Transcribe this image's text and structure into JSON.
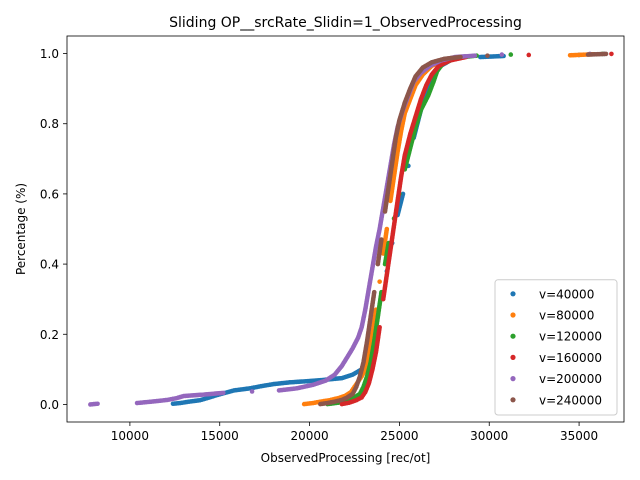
{
  "chart_data": {
    "type": "scatter",
    "title": "Sliding OP__srcRate_Slidin=1_ObservedProcessing",
    "xlabel": "ObservedProcessing [rec/ot]",
    "ylabel": "Percentage (%)",
    "xlim": [
      6500,
      37500
    ],
    "ylim": [
      -0.05,
      1.05
    ],
    "xticks": [
      10000,
      15000,
      20000,
      25000,
      30000,
      35000
    ],
    "yticks": [
      0.0,
      0.2,
      0.4,
      0.6,
      0.8,
      1.0
    ],
    "xtick_labels": [
      "10000",
      "15000",
      "20000",
      "25000",
      "30000",
      "35000"
    ],
    "ytick_labels": [
      "0.0",
      "0.2",
      "0.4",
      "0.6",
      "0.8",
      "1.0"
    ],
    "grid": false,
    "legend_position": "lower-right",
    "series": [
      {
        "name": "v=40000",
        "color": "#1f77b4",
        "points": [
          [
            12400,
            0.002
          ],
          [
            12800,
            0.004
          ],
          [
            13300,
            0.008
          ],
          [
            13900,
            0.012
          ],
          [
            14300,
            0.018
          ],
          [
            14800,
            0.026
          ],
          [
            15300,
            0.033
          ],
          [
            15800,
            0.04
          ],
          [
            16700,
            0.046
          ],
          [
            17300,
            0.052
          ],
          [
            18000,
            0.058
          ],
          [
            18900,
            0.063
          ],
          [
            19800,
            0.066
          ],
          [
            20800,
            0.07
          ],
          [
            21800,
            0.075
          ],
          [
            22400,
            0.085
          ],
          [
            22900,
            0.1
          ],
          [
            23400,
            0.13
          ],
          [
            23700,
            0.2
          ],
          [
            24000,
            0.3
          ],
          [
            24300,
            0.38
          ],
          [
            24600,
            0.46
          ],
          [
            24900,
            0.54
          ],
          [
            25200,
            0.6
          ],
          [
            25500,
            0.68
          ],
          [
            25800,
            0.76
          ],
          [
            26100,
            0.82
          ],
          [
            26400,
            0.88
          ],
          [
            26800,
            0.93
          ],
          [
            27300,
            0.965
          ],
          [
            28000,
            0.985
          ],
          [
            29500,
            0.99
          ],
          [
            30800,
            0.993
          ],
          [
            35000,
            0.996
          ],
          [
            36400,
            0.999
          ]
        ]
      },
      {
        "name": "v=80000",
        "color": "#ff7f0e",
        "points": [
          [
            19700,
            0.001
          ],
          [
            20200,
            0.004
          ],
          [
            20600,
            0.008
          ],
          [
            21100,
            0.012
          ],
          [
            21600,
            0.018
          ],
          [
            22000,
            0.025
          ],
          [
            22300,
            0.035
          ],
          [
            22500,
            0.05
          ],
          [
            22700,
            0.065
          ],
          [
            22900,
            0.08
          ],
          [
            23100,
            0.1
          ],
          [
            23300,
            0.15
          ],
          [
            23500,
            0.2
          ],
          [
            23700,
            0.27
          ],
          [
            23900,
            0.35
          ],
          [
            24100,
            0.43
          ],
          [
            24300,
            0.5
          ],
          [
            24500,
            0.58
          ],
          [
            24700,
            0.65
          ],
          [
            24900,
            0.72
          ],
          [
            25100,
            0.78
          ],
          [
            25300,
            0.83
          ],
          [
            25600,
            0.87
          ],
          [
            25900,
            0.91
          ],
          [
            26300,
            0.94
          ],
          [
            26800,
            0.965
          ],
          [
            27500,
            0.98
          ],
          [
            28500,
            0.99
          ],
          [
            34500,
            0.995
          ],
          [
            35800,
            0.998
          ]
        ]
      },
      {
        "name": "v=120000",
        "color": "#2ca02c",
        "points": [
          [
            21000,
            0.001
          ],
          [
            21600,
            0.005
          ],
          [
            22100,
            0.012
          ],
          [
            22500,
            0.02
          ],
          [
            22800,
            0.03
          ],
          [
            23000,
            0.05
          ],
          [
            23200,
            0.08
          ],
          [
            23400,
            0.12
          ],
          [
            23600,
            0.18
          ],
          [
            23800,
            0.25
          ],
          [
            24000,
            0.32
          ],
          [
            24200,
            0.4
          ],
          [
            24400,
            0.46
          ],
          [
            24700,
            0.53
          ],
          [
            25000,
            0.6
          ],
          [
            25300,
            0.67
          ],
          [
            25600,
            0.73
          ],
          [
            25900,
            0.79
          ],
          [
            26200,
            0.84
          ],
          [
            26600,
            0.88
          ],
          [
            26900,
            0.92
          ],
          [
            27100,
            0.95
          ],
          [
            27400,
            0.97
          ],
          [
            27900,
            0.982
          ],
          [
            28600,
            0.99
          ],
          [
            29300,
            0.994
          ],
          [
            31200,
            0.997
          ],
          [
            36300,
            0.999
          ]
        ]
      },
      {
        "name": "v=160000",
        "color": "#d62728",
        "points": [
          [
            21800,
            0.001
          ],
          [
            22200,
            0.005
          ],
          [
            22600,
            0.012
          ],
          [
            22900,
            0.02
          ],
          [
            23100,
            0.035
          ],
          [
            23300,
            0.06
          ],
          [
            23500,
            0.1
          ],
          [
            23700,
            0.15
          ],
          [
            23900,
            0.22
          ],
          [
            24100,
            0.3
          ],
          [
            24300,
            0.37
          ],
          [
            24500,
            0.44
          ],
          [
            24700,
            0.51
          ],
          [
            24900,
            0.58
          ],
          [
            25100,
            0.65
          ],
          [
            25300,
            0.71
          ],
          [
            25600,
            0.77
          ],
          [
            25900,
            0.82
          ],
          [
            26200,
            0.87
          ],
          [
            26500,
            0.91
          ],
          [
            26800,
            0.94
          ],
          [
            27200,
            0.965
          ],
          [
            27800,
            0.98
          ],
          [
            28700,
            0.99
          ],
          [
            32200,
            0.996
          ],
          [
            36800,
            0.999
          ]
        ]
      },
      {
        "name": "v=200000",
        "color": "#9467bd",
        "points": [
          [
            7800,
            0.0
          ],
          [
            8200,
            0.002
          ],
          [
            10400,
            0.004
          ],
          [
            10800,
            0.006
          ],
          [
            11400,
            0.009
          ],
          [
            12100,
            0.013
          ],
          [
            12600,
            0.018
          ],
          [
            13000,
            0.024
          ],
          [
            14100,
            0.028
          ],
          [
            15200,
            0.033
          ],
          [
            16800,
            0.037
          ],
          [
            18300,
            0.04
          ],
          [
            19300,
            0.046
          ],
          [
            20200,
            0.056
          ],
          [
            20900,
            0.068
          ],
          [
            21400,
            0.085
          ],
          [
            21800,
            0.11
          ],
          [
            22100,
            0.135
          ],
          [
            22400,
            0.16
          ],
          [
            22700,
            0.19
          ],
          [
            22900,
            0.22
          ],
          [
            23100,
            0.27
          ],
          [
            23300,
            0.33
          ],
          [
            23500,
            0.39
          ],
          [
            23700,
            0.45
          ],
          [
            23900,
            0.5
          ],
          [
            24100,
            0.56
          ],
          [
            24300,
            0.62
          ],
          [
            24500,
            0.68
          ],
          [
            24700,
            0.74
          ],
          [
            24900,
            0.79
          ],
          [
            25200,
            0.84
          ],
          [
            25500,
            0.88
          ],
          [
            25800,
            0.92
          ],
          [
            26200,
            0.945
          ],
          [
            26700,
            0.965
          ],
          [
            27300,
            0.98
          ],
          [
            28100,
            0.99
          ],
          [
            29200,
            0.994
          ],
          [
            30700,
            0.997
          ],
          [
            35600,
            0.999
          ]
        ]
      },
      {
        "name": "v=240000",
        "color": "#8c564b",
        "points": [
          [
            20600,
            0.001
          ],
          [
            21000,
            0.004
          ],
          [
            21400,
            0.008
          ],
          [
            21800,
            0.013
          ],
          [
            22100,
            0.02
          ],
          [
            22400,
            0.03
          ],
          [
            22600,
            0.05
          ],
          [
            22800,
            0.08
          ],
          [
            23000,
            0.12
          ],
          [
            23200,
            0.18
          ],
          [
            23400,
            0.25
          ],
          [
            23600,
            0.32
          ],
          [
            23800,
            0.4
          ],
          [
            24000,
            0.47
          ],
          [
            24200,
            0.55
          ],
          [
            24400,
            0.62
          ],
          [
            24600,
            0.69
          ],
          [
            24800,
            0.76
          ],
          [
            25000,
            0.81
          ],
          [
            25300,
            0.86
          ],
          [
            25600,
            0.9
          ],
          [
            25900,
            0.935
          ],
          [
            26300,
            0.96
          ],
          [
            26800,
            0.975
          ],
          [
            27500,
            0.985
          ],
          [
            28400,
            0.99
          ],
          [
            29900,
            0.994
          ],
          [
            35500,
            0.997
          ],
          [
            36500,
            0.999
          ]
        ]
      }
    ]
  }
}
